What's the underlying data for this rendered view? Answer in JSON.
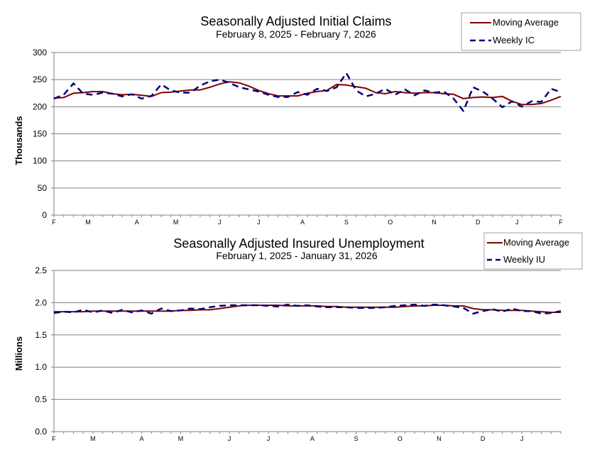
{
  "colors": {
    "moving_average": "#800000",
    "weekly": "#00007f",
    "grid": "#808080",
    "axis": "#808080"
  },
  "chart_data": [
    {
      "type": "line",
      "title": "Seasonally Adjusted Initial Claims",
      "subtitle": "February 8, 2025 - February 7, 2026",
      "ylabel": "Thousands",
      "ylim": [
        0,
        300
      ],
      "yticks": [
        0,
        50,
        100,
        150,
        200,
        250,
        300
      ],
      "ytick_labels": [
        "0",
        "50",
        "100",
        "150",
        "200",
        "250",
        "300"
      ],
      "xtick_labels": [
        "F",
        "M",
        "A",
        "M",
        "J",
        "J",
        "A",
        "S",
        "O",
        "N",
        "D",
        "J",
        "F"
      ],
      "xtick_positions": [
        0,
        3.5,
        8.5,
        12.5,
        17,
        21,
        25.5,
        30,
        34.5,
        39,
        43.5,
        47.5,
        52
      ],
      "grid": true,
      "legend_placement": "top-right",
      "series": [
        {
          "name": "Moving Average",
          "key": "moving_average",
          "x": [
            0,
            1,
            2,
            3,
            4,
            5,
            6,
            7,
            8,
            9,
            10,
            11,
            12,
            13,
            14,
            15,
            16,
            17,
            18,
            19,
            20,
            21,
            22,
            23,
            24,
            25,
            26,
            27,
            28,
            29,
            30,
            31,
            32,
            33,
            34,
            35,
            36,
            37,
            38,
            39,
            40,
            41,
            42,
            43,
            44,
            45,
            46,
            47,
            48,
            49,
            50,
            51,
            52
          ],
          "values": [
            216,
            217,
            225,
            226,
            228,
            228,
            224,
            222,
            223,
            221,
            219,
            226,
            227,
            229,
            231,
            231,
            236,
            242,
            246,
            244,
            238,
            230,
            224,
            220,
            220,
            220,
            225,
            228,
            230,
            241,
            240,
            237,
            234,
            226,
            224,
            228,
            226,
            225,
            226,
            226,
            224,
            223,
            215,
            217,
            218,
            217,
            219,
            210,
            204,
            204,
            206,
            212,
            219
          ]
        },
        {
          "name": "Weekly IC",
          "key": "weekly",
          "x": [
            0,
            1,
            2,
            3,
            4,
            5,
            6,
            7,
            8,
            9,
            10,
            11,
            12,
            13,
            14,
            15,
            16,
            17,
            18,
            19,
            20,
            21,
            22,
            23,
            24,
            25,
            26,
            27,
            28,
            29,
            30,
            31,
            32,
            33,
            34,
            35,
            36,
            37,
            38,
            39,
            40,
            41,
            42,
            43,
            44,
            45,
            46,
            47,
            48,
            49,
            50,
            51,
            52
          ],
          "values": [
            215,
            222,
            243,
            224,
            222,
            226,
            224,
            219,
            223,
            215,
            220,
            241,
            230,
            226,
            226,
            239,
            247,
            250,
            244,
            236,
            232,
            228,
            222,
            218,
            218,
            227,
            222,
            233,
            229,
            236,
            262,
            230,
            219,
            224,
            233,
            222,
            232,
            221,
            230,
            226,
            228,
            215,
            192,
            236,
            228,
            215,
            199,
            210,
            200,
            210,
            209,
            233,
            227
          ]
        }
      ]
    },
    {
      "type": "line",
      "title": "Seasonally Adjusted Insured Unemployment",
      "subtitle": "February 1, 2025 - January 31, 2026",
      "ylabel": "Millions",
      "ylim": [
        0,
        2.5
      ],
      "yticks": [
        0,
        0.5,
        1.0,
        1.5,
        2.0,
        2.5
      ],
      "ytick_labels": [
        "0.0",
        "0.5",
        "1.0",
        "1.5",
        "2.0",
        "2.5"
      ],
      "xtick_labels": [
        "F",
        "M",
        "A",
        "M",
        "J",
        "J",
        "A",
        "S",
        "O",
        "N",
        "D",
        "J"
      ],
      "xtick_positions": [
        0,
        4,
        9,
        13,
        18,
        22,
        26.5,
        31,
        35.5,
        39.5,
        44,
        48
      ],
      "grid": true,
      "legend_placement": "top-right",
      "series": [
        {
          "name": "Moving Average",
          "key": "moving_average",
          "x": [
            0,
            1,
            2,
            3,
            4,
            5,
            6,
            7,
            8,
            9,
            10,
            11,
            12,
            13,
            14,
            15,
            16,
            17,
            18,
            19,
            20,
            21,
            22,
            23,
            24,
            25,
            26,
            27,
            28,
            29,
            30,
            31,
            32,
            33,
            34,
            35,
            36,
            37,
            38,
            39,
            40,
            41,
            42,
            43,
            44,
            45,
            46,
            47,
            48,
            49,
            50,
            51,
            52
          ],
          "values": [
            1.86,
            1.86,
            1.86,
            1.86,
            1.87,
            1.87,
            1.87,
            1.87,
            1.87,
            1.87,
            1.87,
            1.87,
            1.87,
            1.88,
            1.88,
            1.89,
            1.89,
            1.91,
            1.93,
            1.95,
            1.96,
            1.96,
            1.96,
            1.96,
            1.95,
            1.95,
            1.95,
            1.95,
            1.94,
            1.94,
            1.93,
            1.93,
            1.93,
            1.93,
            1.93,
            1.93,
            1.94,
            1.95,
            1.95,
            1.96,
            1.96,
            1.95,
            1.95,
            1.91,
            1.89,
            1.89,
            1.88,
            1.88,
            1.88,
            1.87,
            1.86,
            1.85,
            1.85
          ]
        },
        {
          "name": "Weekly IU",
          "key": "weekly",
          "x": [
            0,
            1,
            2,
            3,
            4,
            5,
            6,
            7,
            8,
            9,
            10,
            11,
            12,
            13,
            14,
            15,
            16,
            17,
            18,
            19,
            20,
            21,
            22,
            23,
            24,
            25,
            26,
            27,
            28,
            29,
            30,
            31,
            32,
            33,
            34,
            35,
            36,
            37,
            38,
            39,
            40,
            41,
            42,
            43,
            44,
            45,
            46,
            47,
            48,
            49,
            50,
            51,
            52
          ],
          "values": [
            1.84,
            1.86,
            1.85,
            1.89,
            1.85,
            1.88,
            1.84,
            1.89,
            1.85,
            1.88,
            1.83,
            1.91,
            1.87,
            1.88,
            1.91,
            1.9,
            1.93,
            1.95,
            1.96,
            1.96,
            1.96,
            1.96,
            1.95,
            1.94,
            1.97,
            1.95,
            1.96,
            1.94,
            1.93,
            1.93,
            1.93,
            1.92,
            1.92,
            1.92,
            1.93,
            1.95,
            1.96,
            1.97,
            1.95,
            1.97,
            1.96,
            1.94,
            1.92,
            1.83,
            1.87,
            1.9,
            1.86,
            1.91,
            1.87,
            1.87,
            1.83,
            1.84,
            1.87
          ]
        }
      ]
    }
  ]
}
